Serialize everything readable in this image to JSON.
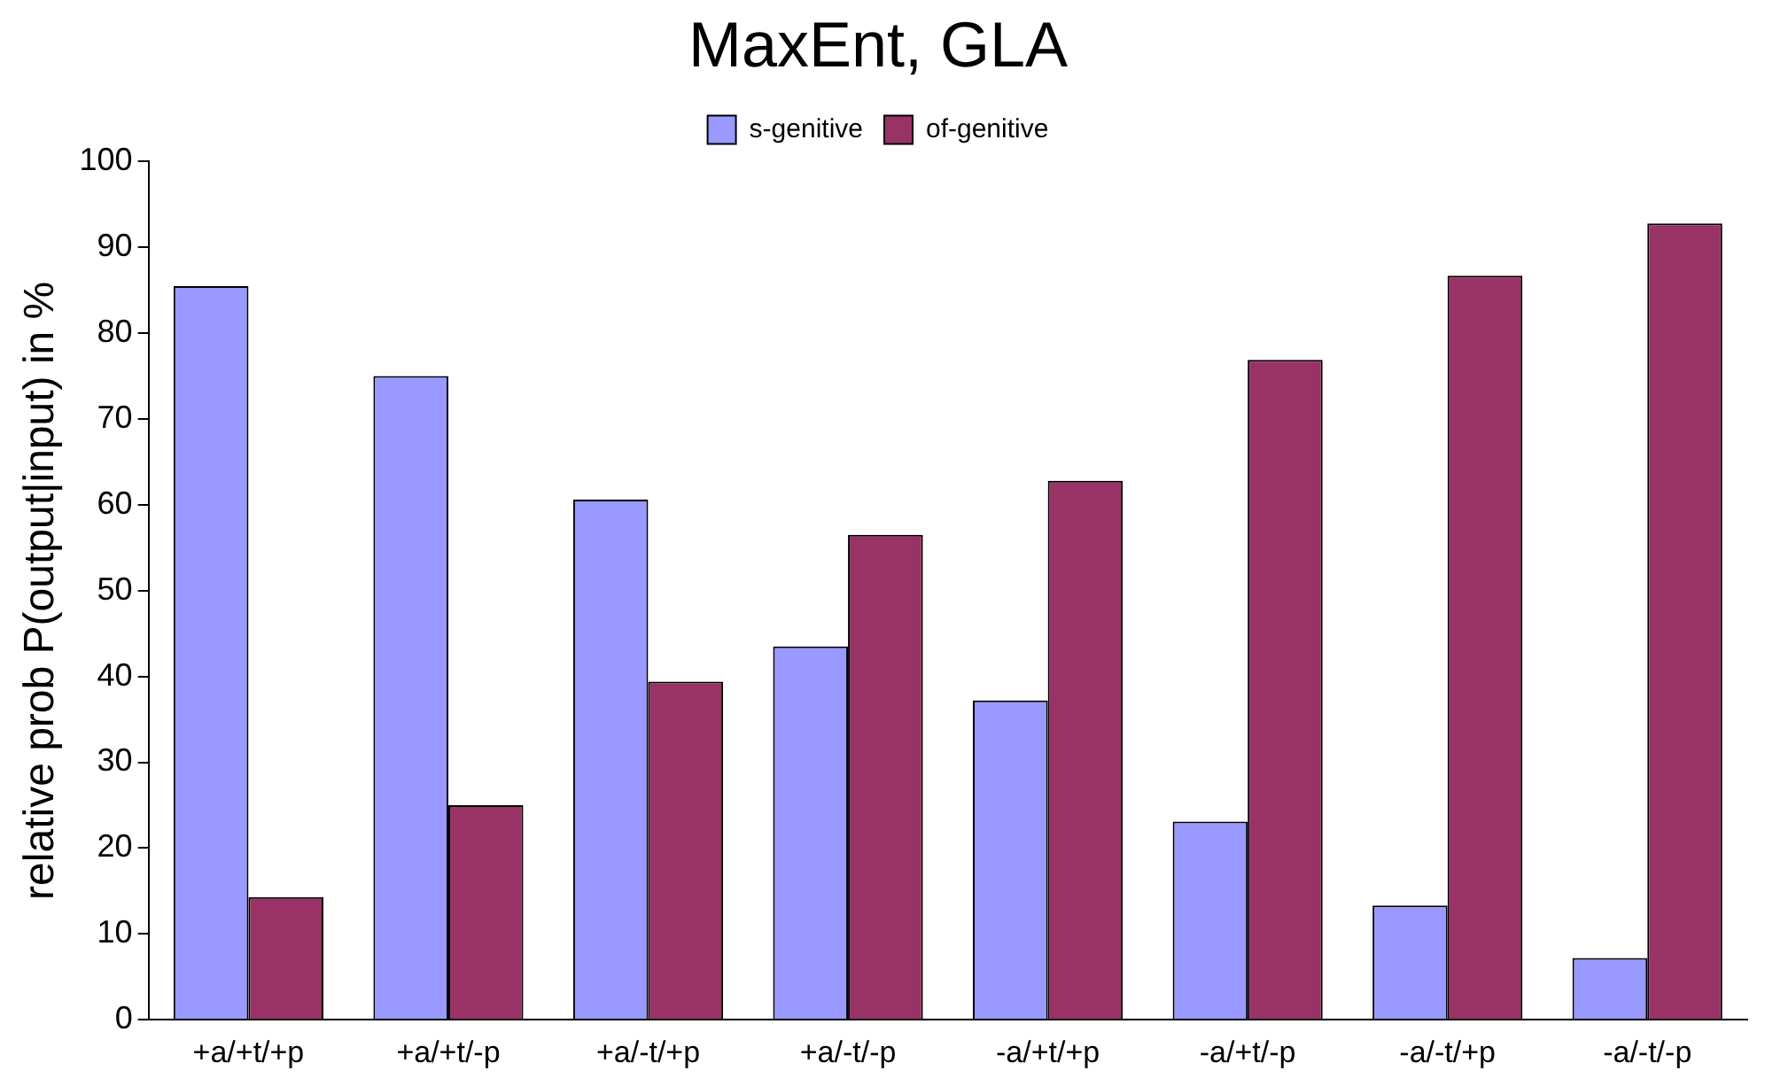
{
  "chart_data": {
    "type": "bar",
    "title": "MaxEnt, GLA",
    "ylabel": "relative prob P(output|input) in %",
    "categories": [
      "+a/+t/+p",
      "+a/+t/-p",
      "+a/-t/+p",
      "+a/-t/-p",
      "-a/+t/+p",
      "-a/+t/-p",
      "-a/-t/+p",
      "-a/-t/-p"
    ],
    "series": [
      {
        "name": "s-genitive",
        "color": "#9999ff",
        "values": [
          85.5,
          75,
          60.6,
          43.5,
          37.2,
          23.1,
          13.3,
          7.2
        ]
      },
      {
        "name": "of-genitive",
        "color": "#993366",
        "values": [
          14.3,
          25,
          39.4,
          56.5,
          62.8,
          76.9,
          86.7,
          92.8
        ]
      }
    ],
    "ylim": [
      0,
      100
    ],
    "yticks": [
      0,
      10,
      20,
      30,
      40,
      50,
      60,
      70,
      80,
      90,
      100
    ],
    "grid": false,
    "legend": "top"
  }
}
